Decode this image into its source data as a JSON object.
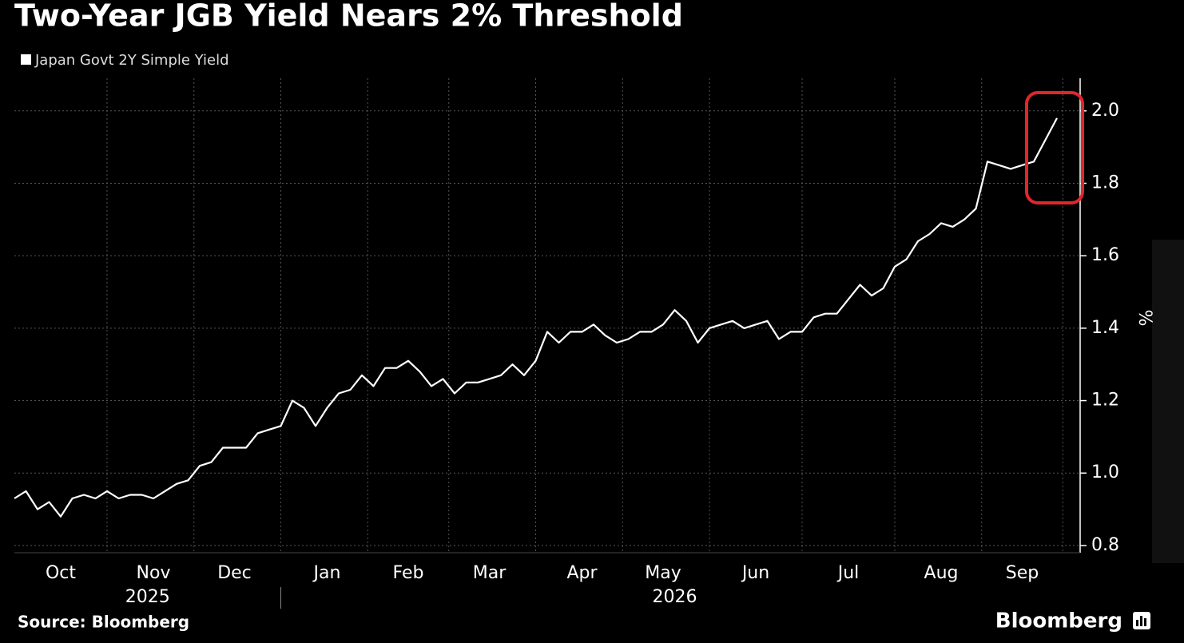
{
  "chart_data": {
    "type": "line",
    "title": "Two-Year JGB Yield Nears 2% Threshold",
    "categories": [
      null,
      null,
      null,
      null,
      "Oct",
      null,
      null,
      null,
      null,
      null,
      null,
      null,
      "Nov",
      null,
      null,
      null,
      null,
      null,
      null,
      "Dec",
      null,
      null,
      null,
      null,
      null,
      null,
      null,
      "Jan",
      null,
      null,
      null,
      null,
      null,
      null,
      "Feb",
      null,
      null,
      null,
      null,
      null,
      null,
      "Mar",
      null,
      null,
      null,
      null,
      null,
      null,
      null,
      "Apr",
      null,
      null,
      null,
      null,
      null,
      null,
      "May",
      null,
      null,
      null,
      null,
      null,
      null,
      null,
      "Jun",
      null,
      null,
      null,
      null,
      null,
      null,
      null,
      "Jul",
      null,
      null,
      null,
      null,
      null,
      null,
      null,
      "Aug",
      null,
      null,
      null,
      null,
      null,
      null,
      "Sep",
      null,
      null,
      null
    ],
    "year_groups": [
      {
        "label": "2025",
        "start": "Oct"
      },
      {
        "label": "2026",
        "start": "Jan"
      }
    ],
    "series": [
      {
        "name": "Japan Govt 2Y Simple Yield",
        "color": "#ffffff",
        "values": [
          0.93,
          0.95,
          0.9,
          0.92,
          0.88,
          0.93,
          0.94,
          0.93,
          0.95,
          0.93,
          0.94,
          0.94,
          0.93,
          0.95,
          0.97,
          0.98,
          1.02,
          1.03,
          1.07,
          1.07,
          1.07,
          1.11,
          1.12,
          1.13,
          1.2,
          1.18,
          1.13,
          1.18,
          1.22,
          1.23,
          1.27,
          1.24,
          1.29,
          1.29,
          1.31,
          1.28,
          1.24,
          1.26,
          1.22,
          1.25,
          1.25,
          1.26,
          1.27,
          1.3,
          1.27,
          1.31,
          1.39,
          1.36,
          1.39,
          1.39,
          1.41,
          1.38,
          1.36,
          1.37,
          1.39,
          1.39,
          1.41,
          1.45,
          1.42,
          1.36,
          1.4,
          1.41,
          1.42,
          1.4,
          1.41,
          1.42,
          1.37,
          1.39,
          1.39,
          1.43,
          1.44,
          1.44,
          1.48,
          1.52,
          1.49,
          1.51,
          1.57,
          1.59,
          1.64,
          1.66,
          1.69,
          1.68,
          1.7,
          1.73,
          1.86,
          1.85,
          1.84,
          1.85,
          1.86,
          1.92,
          1.98
        ]
      }
    ],
    "ylim": [
      0.78,
      2.09
    ],
    "yticks": [
      0.8,
      {
        "value": 1.0,
        "label": "1.0"
      },
      1.2,
      1.4,
      1.6,
      1.8,
      {
        "value": 2.0,
        "label": "2.0"
      }
    ],
    "y_label": "%",
    "grid": true,
    "source": "Source: Bloomberg",
    "brand": "Bloomberg"
  }
}
